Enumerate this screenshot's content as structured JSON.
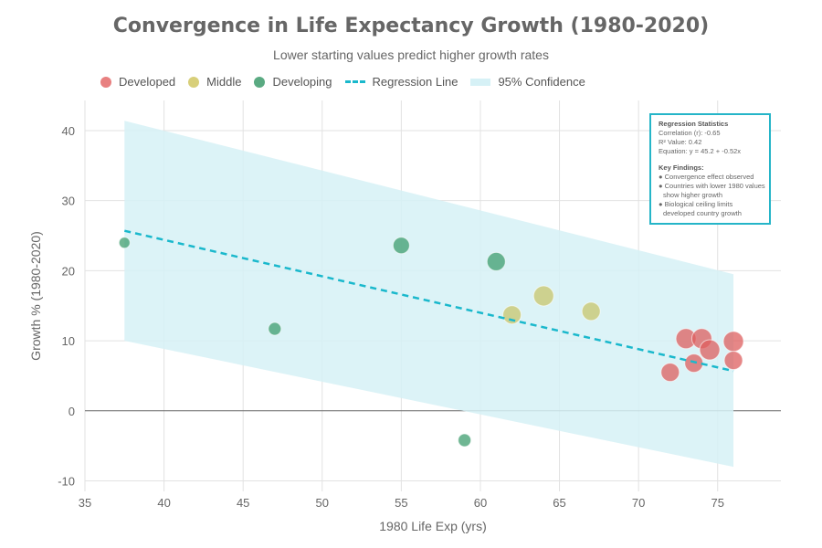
{
  "chart_data": {
    "type": "scatter",
    "title": "Convergence in Life Expectancy Growth (1980-2020)",
    "subtitle": "Lower starting values predict higher growth rates",
    "xlabel": "1980 Life Exp (yrs)",
    "ylabel": "Growth % (1980-2020)",
    "xlim": [
      35,
      79
    ],
    "ylim": [
      -11.5,
      44.3
    ],
    "xticks": [
      35,
      40,
      45,
      50,
      55,
      60,
      65,
      70,
      75
    ],
    "yticks": [
      -10,
      0,
      10,
      20,
      30,
      40
    ],
    "grid": true,
    "legend_position": "top-left",
    "legend": [
      "Developed",
      "Middle",
      "Developing",
      "Regression Line",
      "95% Confidence"
    ],
    "series": [
      {
        "name": "Developed",
        "color": "#dd5f5f",
        "points": [
          [
            72,
            5.5
          ],
          [
            73,
            10.3
          ],
          [
            73.5,
            6.8
          ],
          [
            74,
            10.3
          ],
          [
            74.5,
            8.7
          ],
          [
            76,
            9.9
          ],
          [
            76,
            7.2
          ]
        ]
      },
      {
        "name": "Middle",
        "color": "#c8c56c",
        "points": [
          [
            62,
            13.7
          ],
          [
            64,
            16.4
          ],
          [
            67,
            14.2
          ]
        ]
      },
      {
        "name": "Developing",
        "color": "#3f9e6f",
        "points": [
          [
            37.5,
            24.0
          ],
          [
            47,
            11.7
          ],
          [
            55,
            23.6
          ],
          [
            59,
            -4.2
          ],
          [
            61,
            21.3
          ]
        ]
      }
    ],
    "regression": {
      "name": "Regression Line",
      "color": "#1ab8cc",
      "intercept": 45.2,
      "slope": -0.52,
      "x_range": [
        37.5,
        76
      ]
    },
    "confidence": {
      "name": "95% Confidence",
      "color": "#d6f1f6",
      "x": [
        37.5,
        76
      ],
      "upper": [
        41.4,
        19.5
      ],
      "lower": [
        10.0,
        -8.0
      ]
    },
    "annotation": {
      "heading": "Regression Statistics",
      "correlation": "Correlation (r): -0.65",
      "r2": "R² Value: 0.42",
      "equation": "Equation: y = 45.2 + -0.52x",
      "findings_heading": "Key Findings:",
      "findings": [
        "● Convergence effect observed",
        "● Countries with lower 1980 values show higher growth",
        "● Biological ceiling limits developed country growth"
      ]
    }
  }
}
